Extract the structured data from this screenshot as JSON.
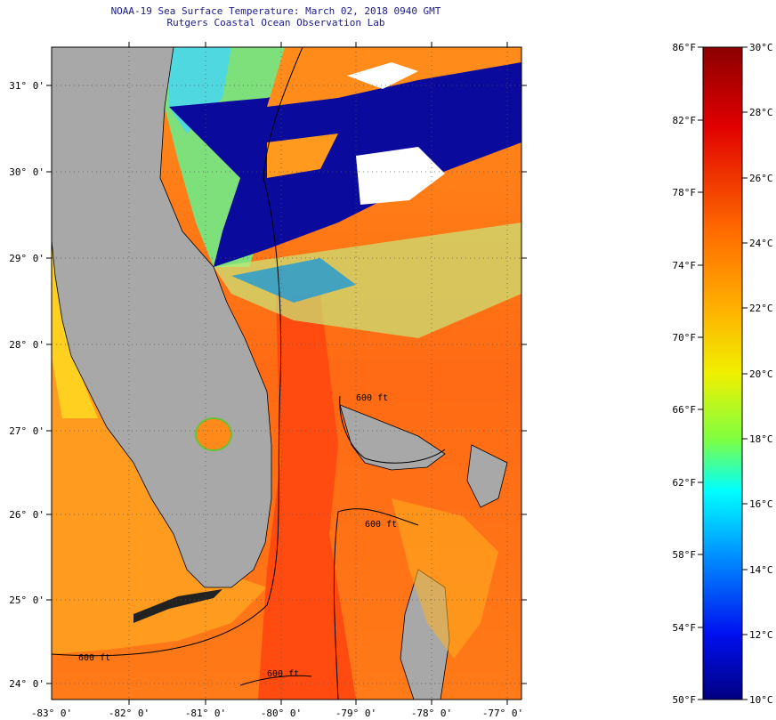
{
  "header": {
    "title": "NOAA-19 Sea Surface Temperature:  March 02, 2018 0940 GMT",
    "subtitle": "Rutgers Coastal Ocean Observation Lab"
  },
  "map": {
    "lat_labels": [
      "31° 0'",
      "30° 0'",
      "29° 0'",
      "28° 0'",
      "27° 0'",
      "26° 0'",
      "25° 0'",
      "24° 0'"
    ],
    "lon_labels": [
      "-83° 0'",
      "-82° 0'",
      "-81° 0'",
      "-80° 0'",
      "-79° 0'",
      "-78° 0'",
      "-77° 0'"
    ],
    "contour_label": "600 ft",
    "colors": {
      "land": "#a8a8a8",
      "gulf_stream": "#ff5a14",
      "warm_water": "#ff9a1e",
      "cool_water": "#ffe020",
      "cold_water": "#1e9ad8",
      "cloud_mask": "#00008c"
    }
  },
  "legend": {
    "fahrenheit": [
      "86°F",
      "82°F",
      "78°F",
      "74°F",
      "70°F",
      "66°F",
      "62°F",
      "58°F",
      "54°F",
      "50°F"
    ],
    "celsius": [
      "30°C",
      "28°C",
      "26°C",
      "24°C",
      "22°C",
      "20°C",
      "18°C",
      "16°C",
      "14°C",
      "12°C",
      "10°C"
    ],
    "gradient": [
      "#8b0000",
      "#ff0000",
      "#ff7f00",
      "#ffd700",
      "#d4ff1e",
      "#00ffff",
      "#0078ff",
      "#0000ff",
      "#000080"
    ]
  }
}
